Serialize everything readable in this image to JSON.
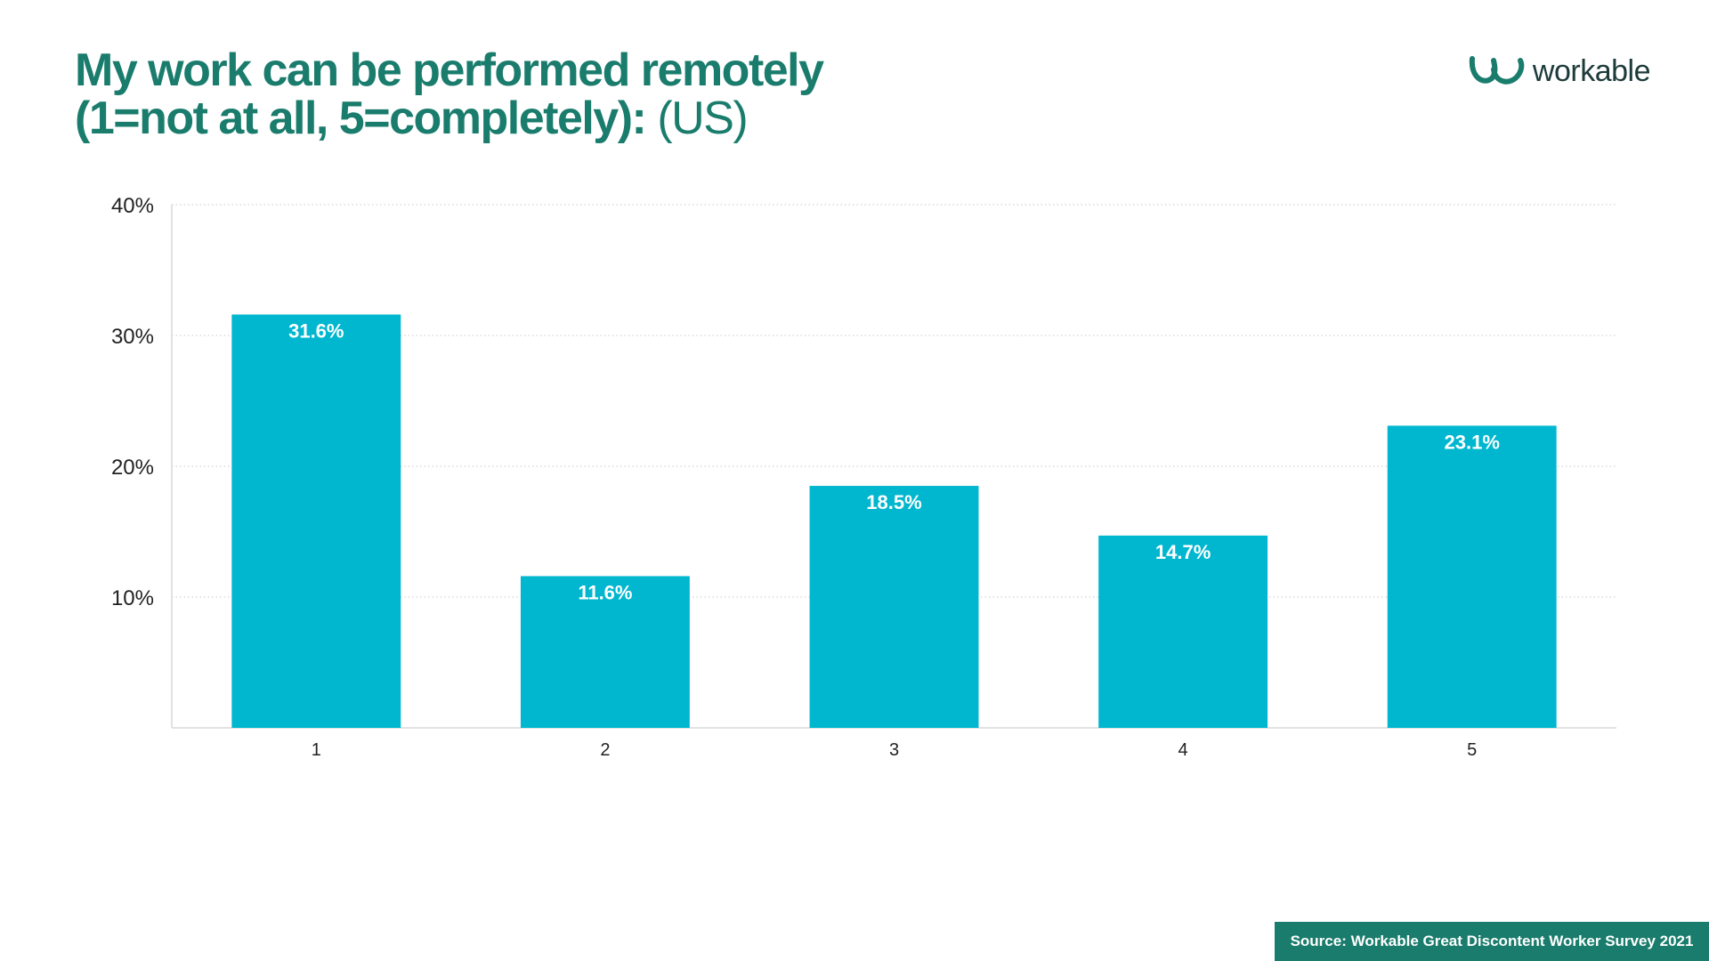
{
  "title": {
    "line1": "My work can be performed remotely",
    "line2": "(1=not at all, 5=completely):",
    "suffix": "(US)"
  },
  "logo": {
    "text": "workable",
    "icon": "workable-logo-icon",
    "color": "#1a7c6c"
  },
  "source": "Source: Workable Great Discontent Worker Survey 2021",
  "colors": {
    "bar": "#00b7cf",
    "title": "#1a7c6c",
    "source_bg": "#1a7c6c"
  },
  "chart_data": {
    "type": "bar",
    "categories": [
      "1",
      "2",
      "3",
      "4",
      "5"
    ],
    "values": [
      31.6,
      11.6,
      18.5,
      14.7,
      23.1
    ],
    "data_labels": [
      "31.6%",
      "11.6%",
      "18.5%",
      "14.7%",
      "23.1%"
    ],
    "ylim": [
      0,
      40
    ],
    "yticks": [
      10,
      20,
      30,
      40
    ],
    "ytick_labels": [
      "10%",
      "20%",
      "30%",
      "40%"
    ],
    "grid": true,
    "legend": false
  }
}
